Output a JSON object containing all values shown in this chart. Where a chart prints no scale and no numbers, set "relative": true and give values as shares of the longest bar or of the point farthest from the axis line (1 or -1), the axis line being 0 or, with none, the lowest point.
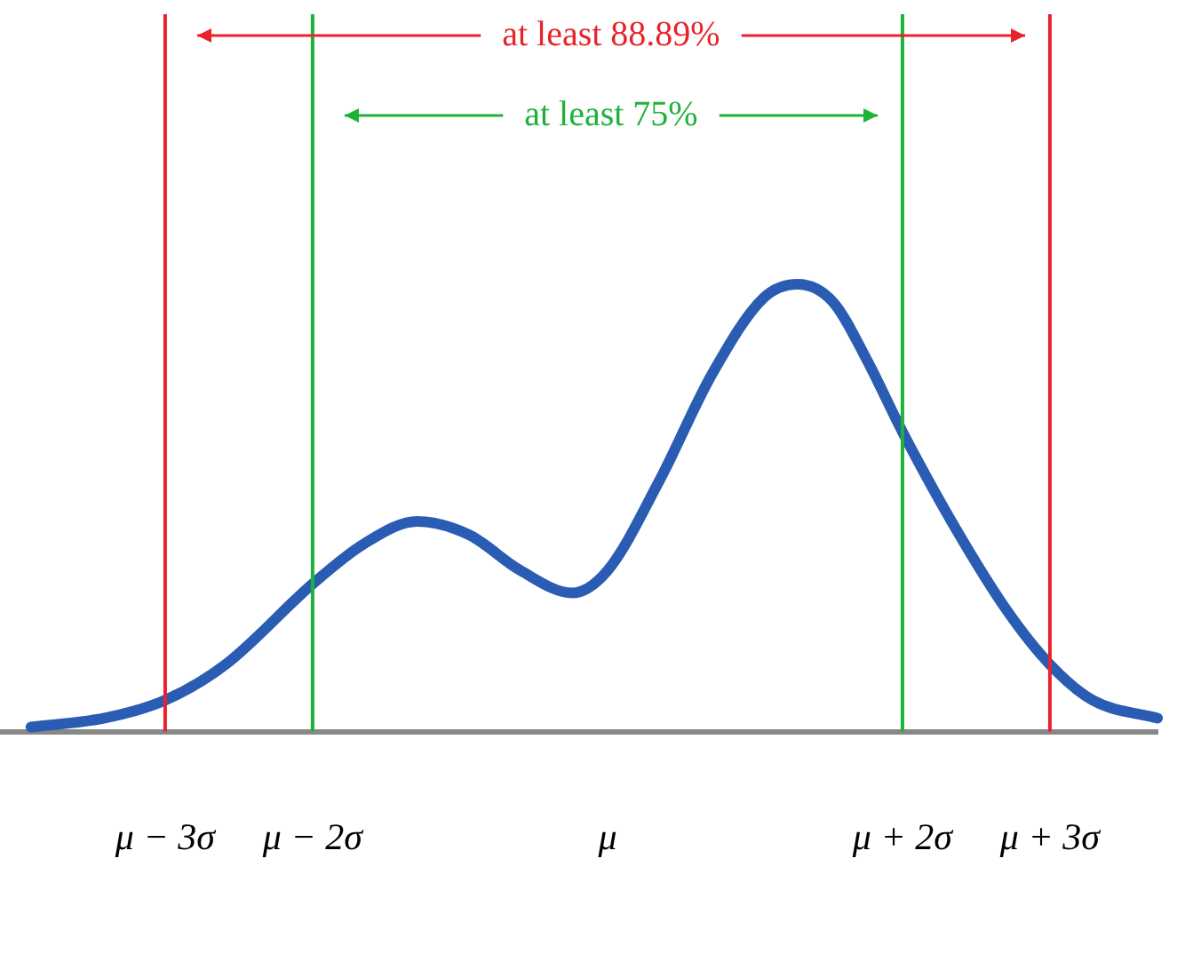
{
  "chart_data": {
    "type": "line",
    "relative": true,
    "x": [
      -3.91,
      -3.41,
      -3.0,
      -2.59,
      -2.0,
      -1.65,
      -1.29,
      -0.94,
      -0.59,
      -0.24,
      0,
      0.35,
      0.71,
      1.06,
      1.29,
      1.53,
      1.76,
      2.0,
      2.35,
      2.71,
      3.0,
      3.29,
      3.73
    ],
    "series": [
      {
        "color": "#2a5cb3",
        "values": [
          0.01,
          0.03,
          0.07,
          0.15,
          0.33,
          0.42,
          0.47,
          0.44,
          0.36,
          0.31,
          0.36,
          0.56,
          0.8,
          0.97,
          1.0,
          0.96,
          0.83,
          0.67,
          0.46,
          0.27,
          0.15,
          0.07,
          0.03
        ]
      }
    ],
    "xlim": [
      -4.12,
      3.73
    ],
    "xticks": [
      {
        "value": -3,
        "label": "μ − 3σ"
      },
      {
        "value": -2,
        "label": "μ − 2σ"
      },
      {
        "value": 0,
        "label": "μ"
      },
      {
        "value": 2,
        "label": "μ + 2σ"
      },
      {
        "value": 3,
        "label": "μ + 3σ"
      }
    ],
    "ref_lines": [
      {
        "axis": "x",
        "value": -3,
        "color": "#e8232b"
      },
      {
        "axis": "x",
        "value": 3,
        "color": "#e8232b"
      },
      {
        "axis": "x",
        "value": -2,
        "color": "#1db33a"
      },
      {
        "axis": "x",
        "value": 2,
        "color": "#1db33a"
      }
    ],
    "annotations": [
      "at least 88.89%",
      "at least 75%"
    ],
    "grid": false,
    "legend": false,
    "marker": "none",
    "line_style": "solid"
  }
}
